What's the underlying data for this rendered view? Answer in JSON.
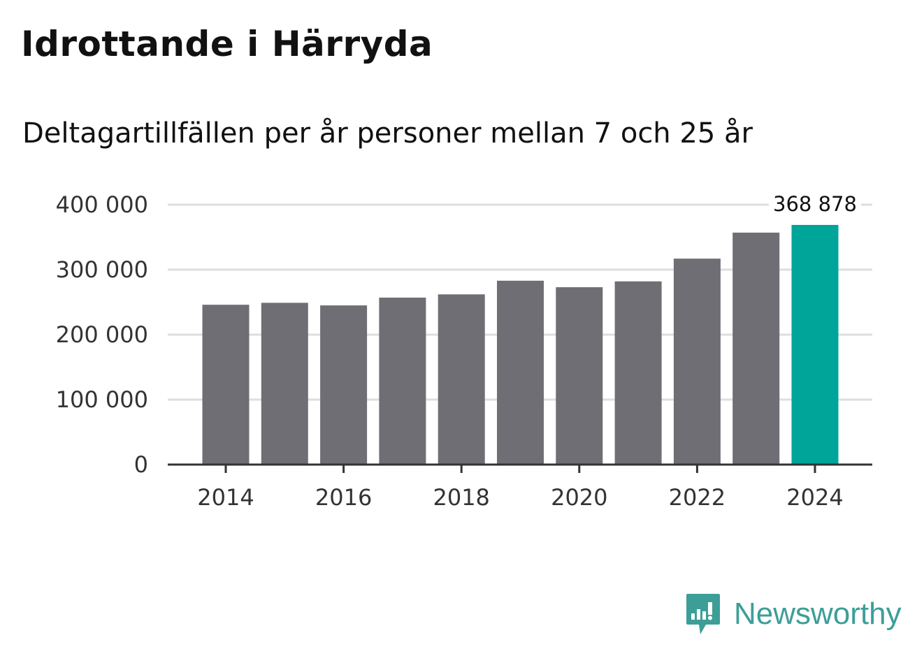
{
  "header": {
    "title": "Idrottande i Härryda",
    "subtitle": "Deltagartillfällen per år personer mellan 7 och 25 år"
  },
  "brand": {
    "name": "Newsworthy",
    "icon": "newsworthy-logo-icon",
    "color": "#3d9e98"
  },
  "chart_data": {
    "type": "bar",
    "categories": [
      2014,
      2015,
      2016,
      2017,
      2018,
      2019,
      2020,
      2021,
      2022,
      2023,
      2024
    ],
    "values": [
      246000,
      249000,
      245000,
      257000,
      262000,
      283000,
      273000,
      282000,
      317000,
      357000,
      368878
    ],
    "highlight_index": 10,
    "highlight_label": "368 878",
    "xticks": [
      "2014",
      "2016",
      "2018",
      "2020",
      "2022",
      "2024"
    ],
    "xtick_values": [
      2014,
      2016,
      2018,
      2020,
      2022,
      2024
    ],
    "yticks": [
      "0",
      "100 000",
      "200 000",
      "300 000",
      "400 000"
    ],
    "ytick_values": [
      0,
      100000,
      200000,
      300000,
      400000
    ],
    "ylim": [
      0,
      400000
    ],
    "grid": true,
    "colors": {
      "bar": "#6f6e74",
      "highlight": "#00a59a",
      "grid": "#dedede",
      "axis": "#333333",
      "tick_label": "#333333"
    }
  }
}
